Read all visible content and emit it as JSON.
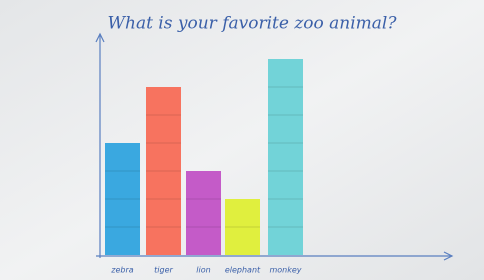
{
  "chart_data": {
    "type": "bar",
    "title": "What is your favorite zoo animal?",
    "categories": [
      "zebra",
      "tiger",
      "lion",
      "elephant",
      "monkey"
    ],
    "values": [
      4,
      6,
      3,
      2,
      7
    ],
    "colors": [
      "#3aa8e0",
      "#f7735f",
      "#c45bc8",
      "#e0ef3e",
      "#72d3d8"
    ]
  }
}
